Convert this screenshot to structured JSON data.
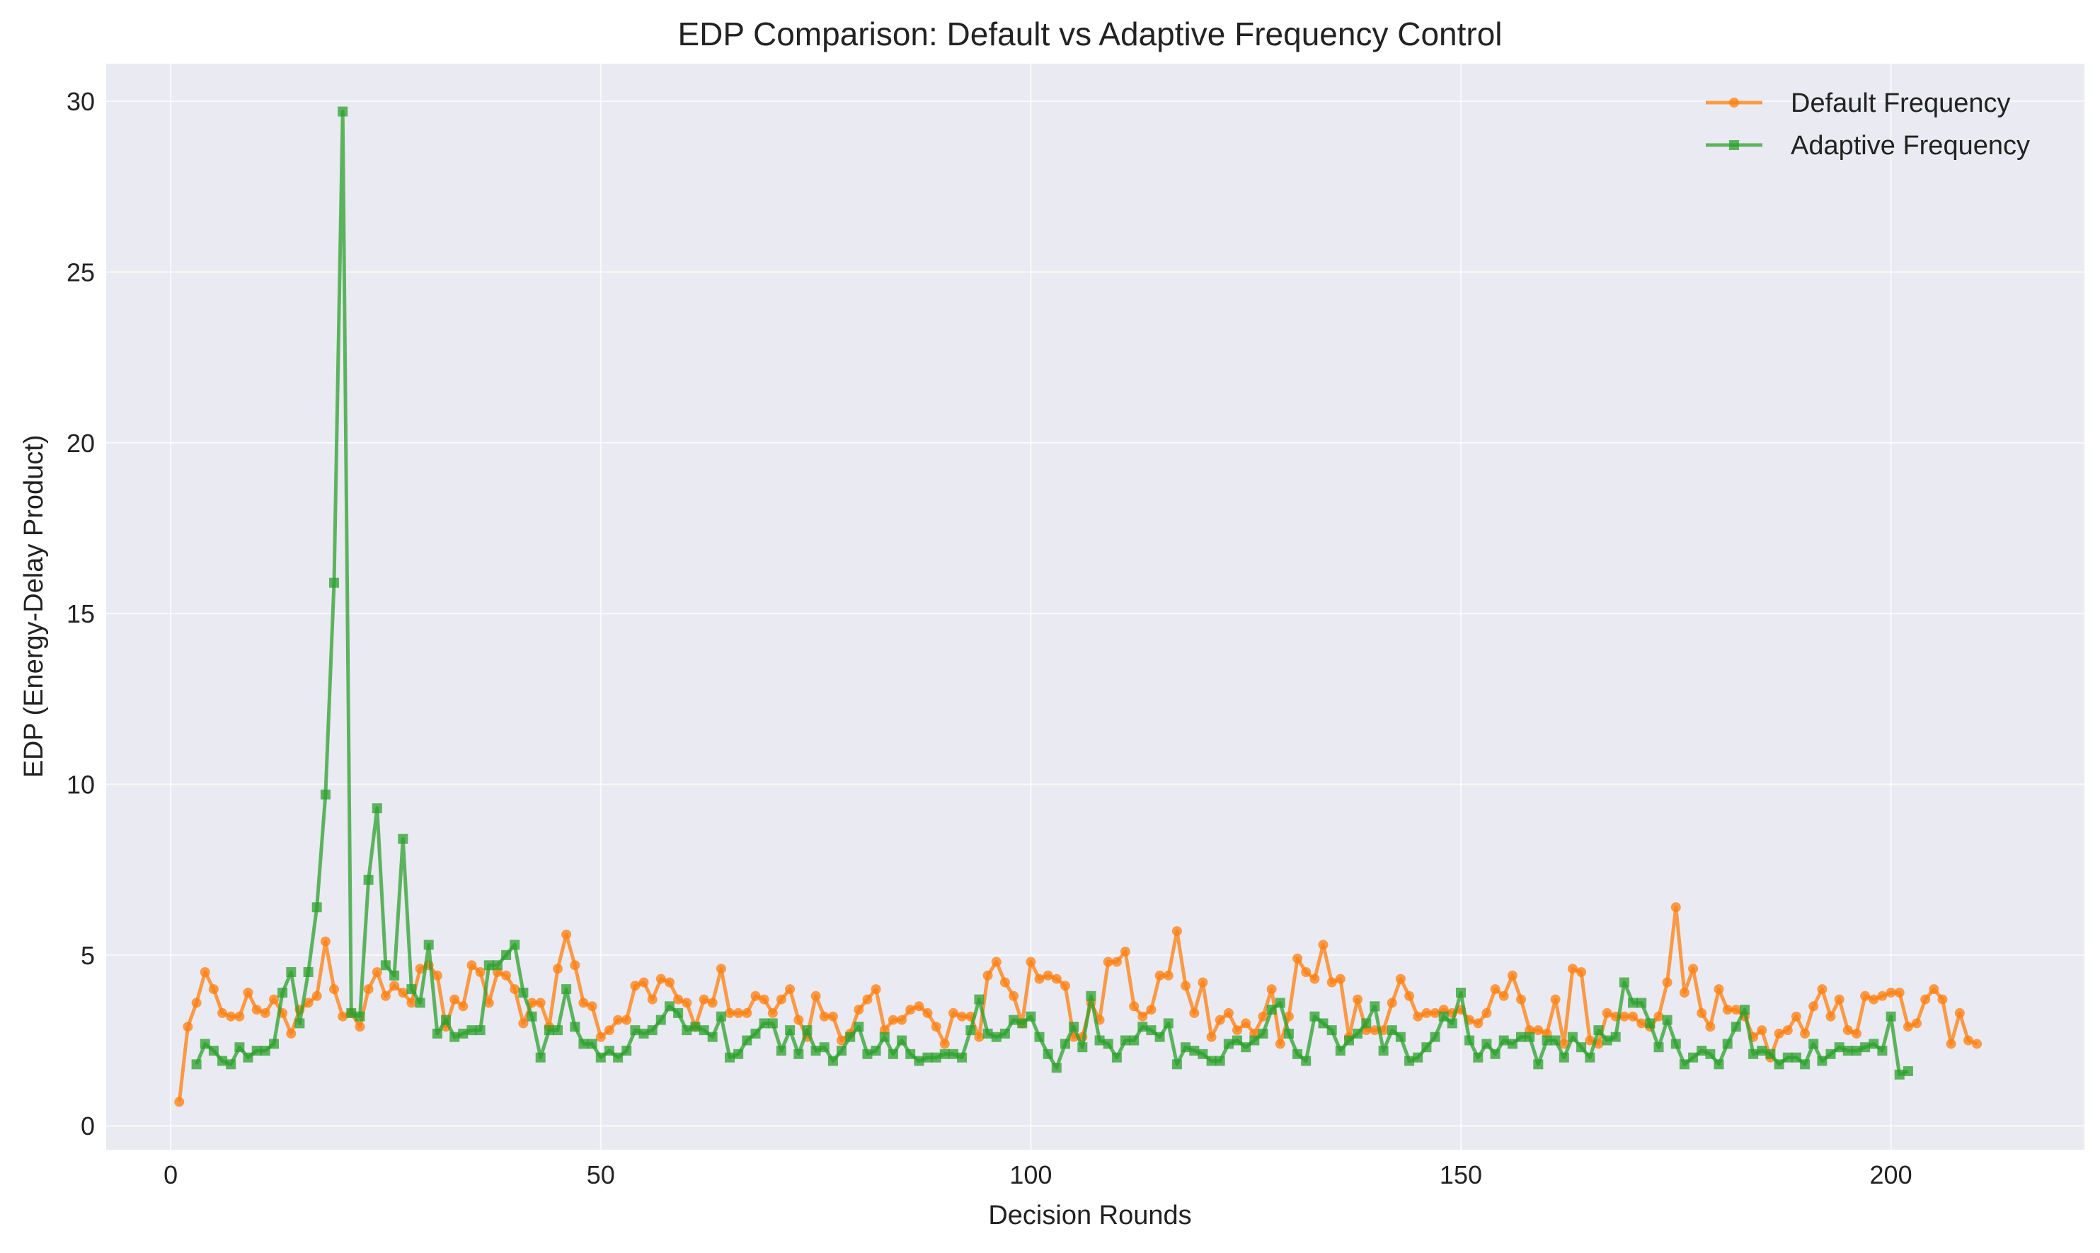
{
  "chart_data": {
    "type": "line",
    "title": "EDP Comparison: Default vs Adaptive Frequency Control",
    "xlabel": "Decision Rounds",
    "ylabel": "EDP (Energy-Delay Product)",
    "xlim": [
      -7.5,
      222.5
    ],
    "ylim": [
      -0.7,
      31.1
    ],
    "x_ticks": [
      0,
      50,
      100,
      150,
      200
    ],
    "y_ticks": [
      0,
      5,
      10,
      15,
      20,
      25,
      30
    ],
    "grid": true,
    "legend_position": "top-right",
    "colors": {
      "background": "#eaeaf2",
      "default": "#ff7f0e",
      "adaptive": "#2ca02c"
    },
    "series": [
      {
        "name": "Default Frequency",
        "marker": "circle",
        "x_start": 1,
        "values": [
          0.7,
          2.9,
          3.6,
          4.5,
          4.0,
          3.3,
          3.2,
          3.2,
          3.9,
          3.4,
          3.3,
          3.7,
          3.3,
          2.7,
          3.4,
          3.6,
          3.8,
          5.4,
          4.0,
          3.2,
          3.3,
          2.9,
          4.0,
          4.5,
          3.8,
          4.1,
          3.9,
          3.6,
          4.6,
          4.7,
          4.4,
          2.9,
          3.7,
          3.5,
          4.7,
          4.5,
          3.6,
          4.5,
          4.4,
          4.0,
          3.0,
          3.6,
          3.6,
          2.9,
          4.6,
          5.6,
          4.7,
          3.6,
          3.5,
          2.6,
          2.8,
          3.1,
          3.1,
          4.1,
          4.2,
          3.7,
          4.3,
          4.2,
          3.7,
          3.6,
          2.9,
          3.7,
          3.6,
          4.6,
          3.3,
          3.3,
          3.3,
          3.8,
          3.7,
          3.3,
          3.7,
          4.0,
          3.1,
          2.6,
          3.8,
          3.2,
          3.2,
          2.5,
          2.7,
          3.4,
          3.7,
          4.0,
          2.8,
          3.1,
          3.1,
          3.4,
          3.5,
          3.3,
          2.9,
          2.4,
          3.3,
          3.2,
          3.2,
          2.6,
          4.4,
          4.8,
          4.2,
          3.8,
          3.0,
          4.8,
          4.3,
          4.4,
          4.3,
          4.1,
          2.6,
          2.6,
          3.6,
          3.1,
          4.8,
          4.8,
          5.1,
          3.5,
          3.2,
          3.4,
          4.4,
          4.4,
          5.7,
          4.1,
          3.3,
          4.2,
          2.6,
          3.1,
          3.3,
          2.8,
          3.0,
          2.7,
          3.2,
          4.0,
          2.4,
          3.2,
          4.9,
          4.5,
          4.3,
          5.3,
          4.2,
          4.3,
          2.6,
          3.7,
          2.8,
          2.8,
          2.8,
          3.6,
          4.3,
          3.8,
          3.2,
          3.3,
          3.3,
          3.4,
          3.3,
          3.4,
          3.1,
          3.0,
          3.3,
          4.0,
          3.8,
          4.4,
          3.7,
          2.8,
          2.8,
          2.7,
          3.7,
          2.4,
          4.6,
          4.5,
          2.5,
          2.4,
          3.3,
          3.2,
          3.2,
          3.2,
          3.0,
          2.9,
          3.2,
          4.2,
          6.4,
          3.9,
          4.6,
          3.3,
          2.9,
          4.0,
          3.4,
          3.4,
          3.2,
          2.6,
          2.8,
          2.0,
          2.7,
          2.8,
          3.2,
          2.7,
          3.5,
          4.0,
          3.2,
          3.7,
          2.8,
          2.7,
          3.8,
          3.7,
          3.8,
          3.9,
          3.9,
          2.9,
          3.0,
          3.7,
          4.0,
          3.7,
          2.4,
          3.3,
          2.5,
          2.4
        ]
      },
      {
        "name": "Adaptive Frequency",
        "marker": "square",
        "x_start": 3,
        "values": [
          1.8,
          2.4,
          2.2,
          1.9,
          1.8,
          2.3,
          2.0,
          2.2,
          2.2,
          2.4,
          3.9,
          4.5,
          3.0,
          4.5,
          6.4,
          9.7,
          15.9,
          29.7,
          3.3,
          3.2,
          7.2,
          9.3,
          4.7,
          4.4,
          8.4,
          4.0,
          3.6,
          5.3,
          2.7,
          3.1,
          2.6,
          2.7,
          2.8,
          2.8,
          4.7,
          4.7,
          5.0,
          5.3,
          3.9,
          3.2,
          2.0,
          2.8,
          2.8,
          4.0,
          2.9,
          2.4,
          2.4,
          2.0,
          2.2,
          2.0,
          2.2,
          2.8,
          2.7,
          2.8,
          3.1,
          3.5,
          3.3,
          2.8,
          2.9,
          2.8,
          2.6,
          3.2,
          2.0,
          2.1,
          2.5,
          2.7,
          3.0,
          3.0,
          2.2,
          2.8,
          2.1,
          2.8,
          2.2,
          2.3,
          1.9,
          2.2,
          2.6,
          2.9,
          2.1,
          2.2,
          2.6,
          2.1,
          2.5,
          2.1,
          1.9,
          2.0,
          2.0,
          2.1,
          2.1,
          2.0,
          2.8,
          3.7,
          2.7,
          2.6,
          2.7,
          3.1,
          3.0,
          3.2,
          2.6,
          2.1,
          1.7,
          2.4,
          2.9,
          2.3,
          3.8,
          2.5,
          2.4,
          2.0,
          2.5,
          2.5,
          2.9,
          2.8,
          2.6,
          3.0,
          1.8,
          2.3,
          2.2,
          2.1,
          1.9,
          1.9,
          2.4,
          2.5,
          2.3,
          2.5,
          2.7,
          3.4,
          3.6,
          2.7,
          2.1,
          1.9,
          3.2,
          3.0,
          2.8,
          2.2,
          2.5,
          2.7,
          3.0,
          3.5,
          2.2,
          2.8,
          2.6,
          1.9,
          2.0,
          2.3,
          2.6,
          3.2,
          3.0,
          3.9,
          2.5,
          2.0,
          2.4,
          2.1,
          2.5,
          2.4,
          2.6,
          2.6,
          1.8,
          2.5,
          2.5,
          2.0,
          2.6,
          2.3,
          2.0,
          2.8,
          2.5,
          2.6,
          4.2,
          3.6,
          3.6,
          3.0,
          2.3,
          3.1,
          2.4,
          1.8,
          2.0,
          2.2,
          2.1,
          1.8,
          2.4,
          2.9,
          3.4,
          2.1,
          2.2,
          2.1,
          1.8,
          2.0,
          2.0,
          1.8,
          2.4,
          1.9,
          2.1,
          2.3,
          2.2,
          2.2,
          2.3,
          2.4,
          2.2,
          3.2,
          1.5,
          1.6
        ]
      }
    ]
  }
}
